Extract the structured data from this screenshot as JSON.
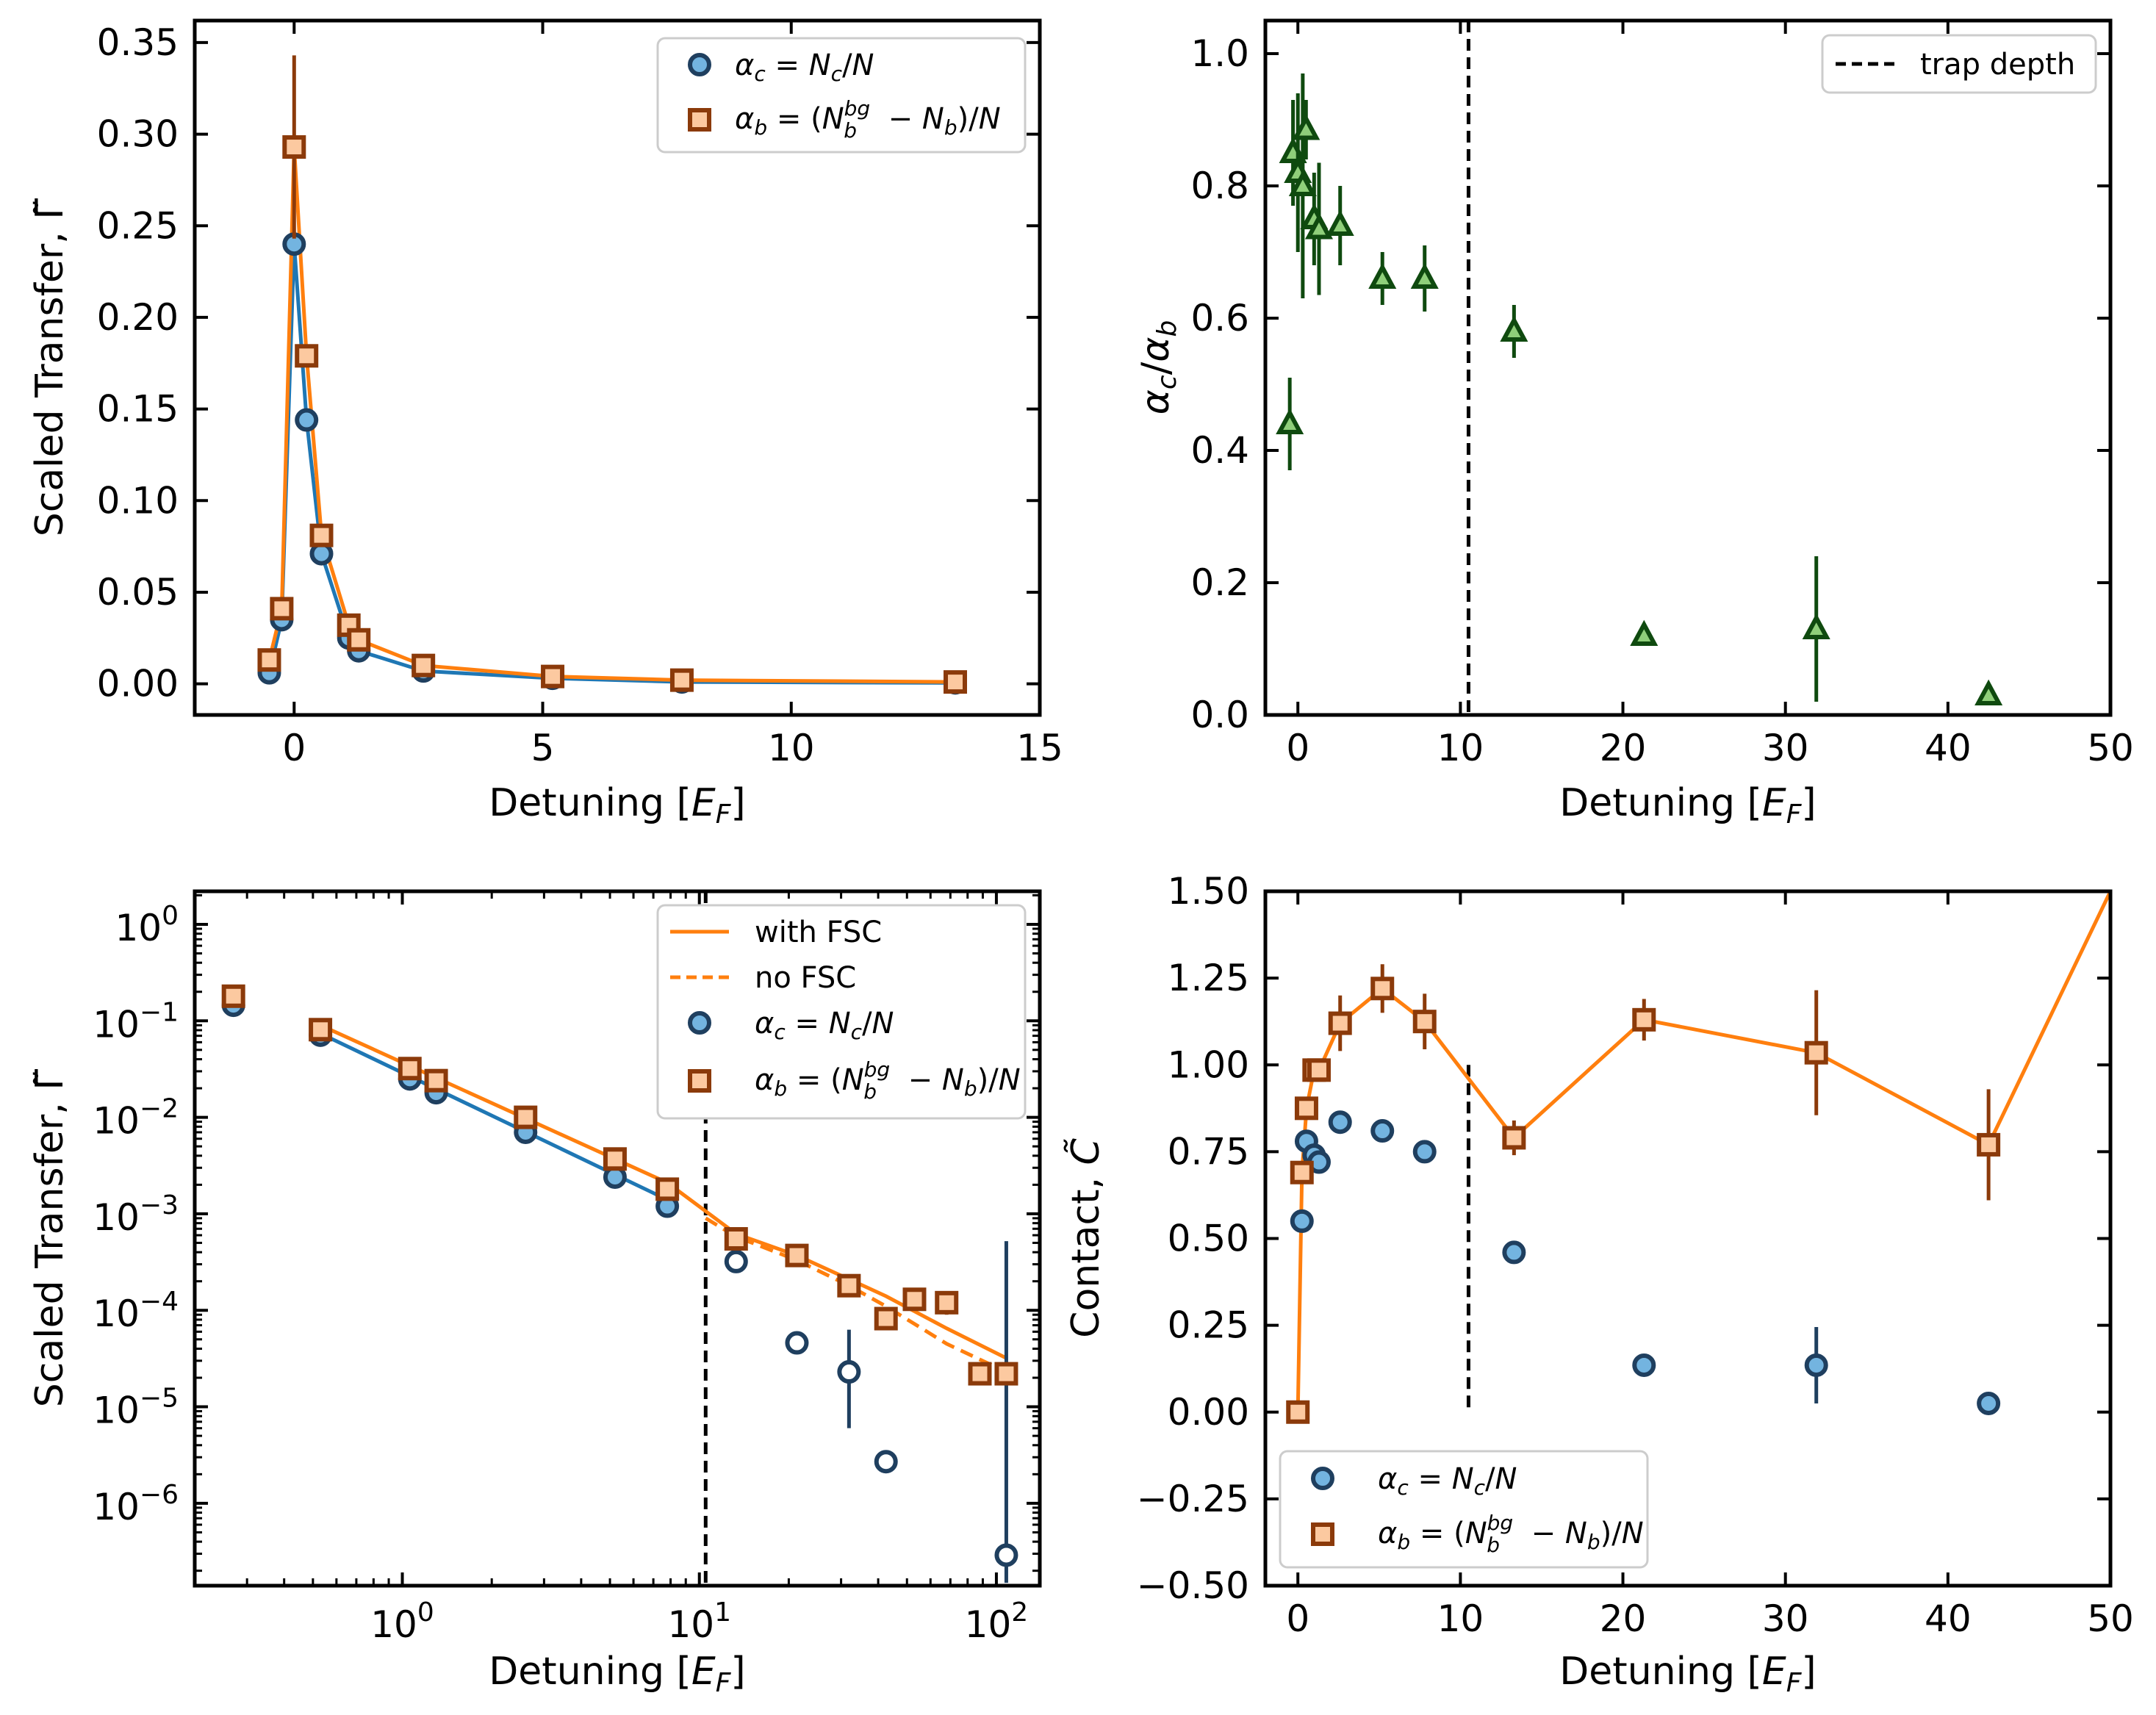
{
  "chart_data": [
    {
      "id": "tl",
      "type": "line",
      "xlabel": "Detuning [E_F]",
      "ylabel": "Scaled Transfer, Γ̃",
      "xlim": [
        -2,
        15
      ],
      "ylim": [
        -0.017,
        0.362
      ],
      "xticks": [
        0,
        5,
        10,
        15
      ],
      "xtick_labels": [
        "0",
        "5",
        "10",
        "15"
      ],
      "yticks": [
        0,
        0.05,
        0.1,
        0.15,
        0.2,
        0.25,
        0.3,
        0.35
      ],
      "ytick_labels": [
        "0.00",
        "0.05",
        "0.10",
        "0.15",
        "0.20",
        "0.25",
        "0.30",
        "0.35"
      ],
      "legend_position": "upper right",
      "legend": [
        "α_c = N_c/N",
        "α_b = (N_b^bg − N_b)/N"
      ],
      "series": [
        {
          "name": "α_c = N_c/N",
          "color": "#1f77b4",
          "marker": "circle",
          "x": [
            -0.5,
            -0.25,
            0,
            0.25,
            0.55,
            1.1,
            1.3,
            2.6,
            5.2,
            7.8,
            13.3
          ],
          "y": [
            0.006,
            0.035,
            0.24,
            0.144,
            0.071,
            0.025,
            0.018,
            0.007,
            0.003,
            0.001,
            0.0005
          ],
          "err": [
            0,
            0,
            0,
            0,
            0,
            0,
            0,
            0,
            0,
            0,
            0
          ]
        },
        {
          "name": "α_b = (N_b^bg − N_b)/N",
          "color": "#ff7f0e",
          "marker": "square",
          "x": [
            -0.5,
            -0.25,
            0,
            0.25,
            0.55,
            1.1,
            1.3,
            2.6,
            5.2,
            7.8,
            13.3
          ],
          "y": [
            0.013,
            0.041,
            0.293,
            0.179,
            0.081,
            0.032,
            0.024,
            0.01,
            0.004,
            0.002,
            0.001
          ],
          "err": [
            0,
            0.004,
            0.05,
            0,
            0,
            0,
            0,
            0,
            0,
            0,
            0
          ]
        }
      ]
    },
    {
      "id": "tr",
      "type": "scatter",
      "xlabel": "Detuning [E_F]",
      "ylabel": "α_c/α_b",
      "xlim": [
        -2,
        50
      ],
      "ylim": [
        0,
        1.05
      ],
      "xticks": [
        0,
        10,
        20,
        30,
        40,
        50
      ],
      "xtick_labels": [
        "0",
        "10",
        "20",
        "30",
        "40",
        "50"
      ],
      "yticks": [
        0,
        0.2,
        0.4,
        0.6,
        0.8,
        1.0
      ],
      "ytick_labels": [
        "0.0",
        "0.2",
        "0.4",
        "0.6",
        "0.8",
        "1.0"
      ],
      "vline": 10.5,
      "legend_position": "upper right",
      "legend": [
        "trap depth"
      ],
      "series": [
        {
          "name": "α_c/α_b",
          "color": "#2ca02c",
          "marker": "triangle",
          "x": [
            -0.5,
            -0.3,
            0,
            0.3,
            0.5,
            1.0,
            1.3,
            2.6,
            5.2,
            7.8,
            13.3,
            21.3,
            31.9,
            42.5
          ],
          "y": [
            0.44,
            0.85,
            0.82,
            0.8,
            0.885,
            0.75,
            0.735,
            0.74,
            0.66,
            0.66,
            0.58,
            0.12,
            0.13,
            0.03
          ],
          "err": [
            0.07,
            0.08,
            0.12,
            0.17,
            0.045,
            0.07,
            0.1,
            0.06,
            0.04,
            0.05,
            0.04,
            0.015,
            0.11,
            0.01
          ]
        }
      ]
    },
    {
      "id": "bl",
      "type": "line",
      "xlabel": "Detuning [E_F]",
      "ylabel": "Scaled Transfer, Γ̃",
      "xscale": "log",
      "yscale": "log",
      "xlim": [
        0.2,
        140
      ],
      "ylim": [
        1.4e-07,
        2.2
      ],
      "xticks": [
        1,
        10,
        100
      ],
      "xtick_labels": [
        "10^0",
        "10^1",
        "10^2"
      ],
      "yticks": [
        1e-06,
        1e-05,
        0.0001,
        0.001,
        0.01,
        0.1,
        1
      ],
      "ytick_labels": [
        "10^-6",
        "10^-5",
        "10^-4",
        "10^-3",
        "10^-2",
        "10^-1",
        "10^0"
      ],
      "vline": 10.5,
      "legend_position": "upper right",
      "legend": [
        "with FSC",
        "no FSC",
        "α_c = N_c/N",
        "α_b = (N_b^bg − N_b)/N"
      ],
      "series": [
        {
          "name": "α_c = N_c/N",
          "color": "#1f77b4",
          "marker": "circle",
          "x": [
            0.27,
            0.53,
            1.06,
            1.3,
            2.6,
            5.2,
            7.8,
            13.3,
            21.3,
            31.9,
            42.5,
            108
          ],
          "y": [
            0.145,
            0.071,
            0.025,
            0.018,
            0.007,
            0.0024,
            0.0012,
            0.00032,
            4.6e-05,
            2.3e-05,
            2.7e-06,
            2.9e-07
          ],
          "err_low": [
            0,
            0,
            0,
            0,
            0,
            0,
            0,
            0,
            0,
            1.7e-05,
            0,
            1.4e-07
          ],
          "err_high": [
            0,
            0,
            0,
            0,
            0,
            0,
            0,
            0,
            0,
            4e-05,
            0,
            0.00052
          ]
        },
        {
          "name": "α_b = (N_b^bg − N_b)/N",
          "color": "#ff7f0e",
          "marker": "square",
          "x": [
            0.27,
            0.53,
            1.06,
            1.3,
            2.6,
            5.2,
            7.8,
            13.3,
            21.3,
            31.9,
            42.5,
            53,
            68,
            88,
            108
          ],
          "y": [
            0.18,
            0.081,
            0.032,
            0.024,
            0.01,
            0.0037,
            0.0018,
            0.00055,
            0.00037,
            0.00018,
            8.2e-05,
            0.00013,
            0.00012,
            2.2e-05,
            2.2e-05
          ],
          "err_low": [
            0,
            0,
            0,
            0,
            0,
            0,
            0,
            0,
            0,
            0,
            0,
            0,
            3e-05,
            5e-06,
            5e-06
          ],
          "err_high": [
            0,
            0,
            0,
            0,
            0,
            0,
            0,
            0,
            0,
            0,
            0,
            0,
            3e-05,
            5e-06,
            5e-06
          ]
        },
        {
          "name": "with FSC",
          "color": "#ff7f0e",
          "style": "solid",
          "x": [
            0.53,
            7.8,
            13.3,
            21.3,
            31.9,
            42.5,
            68,
            108
          ],
          "y": [
            0.09,
            0.0021,
            0.00062,
            0.00037,
            0.00021,
            0.00014,
            6.5e-05,
            3.2e-05
          ]
        },
        {
          "name": "no FSC",
          "color": "#ff7f0e",
          "style": "dashed",
          "x": [
            10.5,
            13.3,
            21.3,
            31.9,
            42.5,
            68,
            108
          ],
          "y": [
            0.0009,
            0.00058,
            0.00033,
            0.00018,
            0.00011,
            4.5e-05,
            2.3e-05
          ]
        },
        {
          "name": "fit α_c",
          "color": "#1f77b4",
          "style": "solid",
          "x": [
            0.53,
            7.8
          ],
          "y": [
            0.074,
            0.0014
          ]
        }
      ]
    },
    {
      "id": "br",
      "type": "line",
      "xlabel": "Detuning [E_F]",
      "ylabel": "Contact, C̃",
      "xlim": [
        -2,
        50
      ],
      "ylim": [
        -0.5,
        1.5
      ],
      "xticks": [
        0,
        10,
        20,
        30,
        40,
        50
      ],
      "xtick_labels": [
        "0",
        "10",
        "20",
        "30",
        "40",
        "50"
      ],
      "yticks": [
        -0.5,
        -0.25,
        0,
        0.25,
        0.5,
        0.75,
        1.0,
        1.25,
        1.5
      ],
      "ytick_labels": [
        "−0.50",
        "−0.25",
        "0.00",
        "0.25",
        "0.50",
        "0.75",
        "1.00",
        "1.25",
        "1.50"
      ],
      "vline": 10.5,
      "vline_range": [
        0,
        1.0
      ],
      "legend_position": "lower left",
      "legend": [
        "α_c = N_c/N",
        "α_b = (N_b^bg − N_b)/N"
      ],
      "series": [
        {
          "name": "α_c = N_c/N",
          "color": "#1f77b4",
          "marker": "circle",
          "x": [
            0.25,
            0.53,
            1.0,
            1.3,
            2.6,
            5.2,
            7.8,
            13.3,
            21.3,
            31.9,
            42.5
          ],
          "y": [
            0.55,
            0.78,
            0.74,
            0.72,
            0.835,
            0.81,
            0.75,
            0.46,
            0.135,
            0.135,
            0.025
          ],
          "err": [
            0,
            0,
            0,
            0,
            0,
            0,
            0,
            0,
            0,
            0.11,
            0
          ]
        },
        {
          "name": "α_b = (N_b^bg − N_b)/N",
          "color": "#ff7f0e",
          "marker": "square",
          "x": [
            0,
            0.25,
            0.53,
            1.0,
            1.3,
            2.6,
            5.2,
            7.8,
            13.3,
            21.3,
            31.9,
            42.5
          ],
          "y": [
            0,
            0.69,
            0.875,
            0.985,
            0.985,
            1.12,
            1.22,
            1.125,
            0.79,
            1.13,
            1.035,
            0.77
          ],
          "err": [
            0,
            0,
            0,
            0,
            0,
            0.08,
            0.07,
            0.08,
            0.05,
            0.06,
            0.18,
            0.16
          ]
        },
        {
          "name": "α_b line",
          "color": "#ff7f0e",
          "style": "solid",
          "x": [
            0,
            0.25,
            0.53,
            1.0,
            1.3,
            2.6,
            5.2,
            7.8,
            13.3,
            21.3,
            31.9,
            42.5,
            50
          ],
          "y": [
            0,
            0.69,
            0.875,
            0.985,
            0.985,
            1.12,
            1.22,
            1.125,
            0.79,
            1.13,
            1.035,
            0.77,
            1.5
          ]
        }
      ]
    }
  ]
}
